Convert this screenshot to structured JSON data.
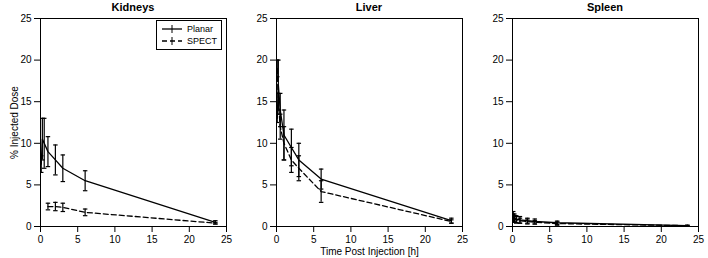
{
  "chart_data": [
    {
      "type": "line",
      "title": "Kidneys",
      "y_label": "% Injected Dose",
      "xlim": [
        0,
        25
      ],
      "ylim": [
        0,
        25
      ],
      "xticks": [
        0,
        5,
        10,
        15,
        20,
        25
      ],
      "yticks": [
        0,
        5,
        10,
        15,
        20,
        25
      ],
      "legend": "upper right",
      "series": [
        {
          "name": "Planar",
          "color": "#000000",
          "line_style": "solid",
          "x": [
            0.1,
            0.25,
            0.5,
            1,
            2,
            3,
            6,
            23.5
          ],
          "values": [
            7.5,
            10.5,
            10,
            9,
            8,
            7,
            5.5,
            0.5
          ],
          "errors": [
            1,
            2.5,
            3,
            1.8,
            1.8,
            1.6,
            1.2,
            0.2
          ]
        },
        {
          "name": "SPECT",
          "color": "#000000",
          "line_style": "dashed",
          "x": [
            1,
            2,
            3,
            6,
            23.5
          ],
          "values": [
            2.4,
            2.4,
            2.3,
            1.7,
            0.4
          ],
          "errors": [
            0.4,
            0.5,
            0.5,
            0.4,
            0.1
          ]
        }
      ]
    },
    {
      "type": "line",
      "title": "Liver",
      "x_label": "Time Post Injection [h]",
      "xlim": [
        0,
        25
      ],
      "ylim": [
        0,
        25
      ],
      "xticks": [
        0,
        5,
        10,
        15,
        20,
        25
      ],
      "yticks": [
        0,
        5,
        10,
        15,
        20,
        25
      ],
      "series": [
        {
          "name": "Planar",
          "color": "#000000",
          "line_style": "solid",
          "x": [
            0.1,
            0.25,
            0.5,
            1,
            2,
            3,
            6,
            23.5
          ],
          "values": [
            13,
            17,
            14,
            11,
            9.5,
            8,
            5.7,
            0.7
          ],
          "errors": [
            0.5,
            3,
            2,
            3,
            2.2,
            2,
            1.2,
            0.3
          ]
        },
        {
          "name": "SPECT",
          "color": "#000000",
          "line_style": "dashed",
          "x": [
            0.1,
            0.25,
            0.5,
            1,
            2,
            3,
            6,
            23.5
          ],
          "values": [
            19,
            15,
            12,
            10,
            8,
            7,
            4.2,
            0.6
          ],
          "errors": [
            1,
            1,
            1.5,
            2,
            1.5,
            1.5,
            1.3,
            0.2
          ]
        }
      ]
    },
    {
      "type": "line",
      "title": "Spleen",
      "xlim": [
        0,
        25
      ],
      "ylim": [
        0,
        25
      ],
      "xticks": [
        0,
        5,
        10,
        15,
        20,
        25
      ],
      "yticks": [
        0,
        5,
        10,
        15,
        20,
        25
      ],
      "series": [
        {
          "name": "Planar",
          "color": "#000000",
          "line_style": "solid",
          "x": [
            0.1,
            0.25,
            0.5,
            1,
            2,
            3,
            6,
            23.5
          ],
          "values": [
            1.2,
            1.0,
            0.9,
            0.8,
            0.7,
            0.6,
            0.45,
            0.1
          ],
          "errors": [
            0.6,
            0.5,
            0.4,
            0.4,
            0.3,
            0.3,
            0.2,
            0.05
          ]
        },
        {
          "name": "SPECT",
          "color": "#000000",
          "line_style": "dashed",
          "x": [
            0.1,
            0.25,
            0.5,
            1,
            2,
            3,
            6,
            23.5
          ],
          "values": [
            1.0,
            0.9,
            0.8,
            0.7,
            0.6,
            0.5,
            0.35,
            0.1
          ],
          "errors": [
            0.5,
            0.4,
            0.4,
            0.3,
            0.3,
            0.2,
            0.2,
            0.05
          ]
        }
      ]
    }
  ]
}
